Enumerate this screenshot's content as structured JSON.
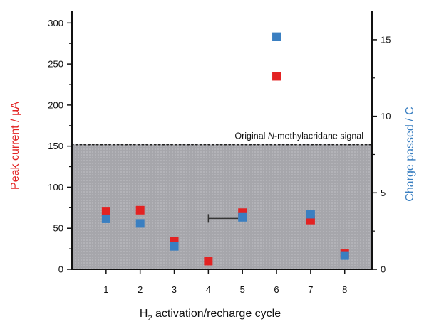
{
  "chart_data": {
    "type": "scatter",
    "xlabel": "H",
    "xlabel_sub": "2",
    "xlabel_rest": " activation/recharge cycle",
    "ylabel": "Peak current / µA",
    "y2label": "Charge passed / C",
    "x_ticks": [
      1,
      2,
      3,
      4,
      5,
      6,
      7,
      8
    ],
    "y_ticks": [
      0,
      50,
      100,
      150,
      200,
      250,
      300
    ],
    "y2_ticks": [
      0,
      5,
      10,
      15
    ],
    "xlim": [
      0,
      8.8
    ],
    "ylim": [
      0,
      315
    ],
    "y2lim": [
      0,
      16.9
    ],
    "reference_line": {
      "value": 152,
      "label_pre": "Original ",
      "label_italic": "N",
      "label_post": "-methylacridane signal"
    },
    "series": [
      {
        "axis": "left",
        "color": "#e32222",
        "x": [
          1,
          2,
          3,
          4,
          5,
          6,
          7,
          8
        ],
        "y": [
          70,
          72,
          34,
          10,
          69,
          235,
          60,
          19
        ]
      },
      {
        "axis": "right",
        "color": "#3a7fc1",
        "x": [
          1,
          2,
          3,
          5,
          6,
          7,
          8
        ],
        "y": [
          3.3,
          3.0,
          1.5,
          3.4,
          15.2,
          3.6,
          0.9
        ]
      }
    ],
    "error_bar": {
      "x": [
        4,
        5
      ],
      "y": 62
    }
  }
}
